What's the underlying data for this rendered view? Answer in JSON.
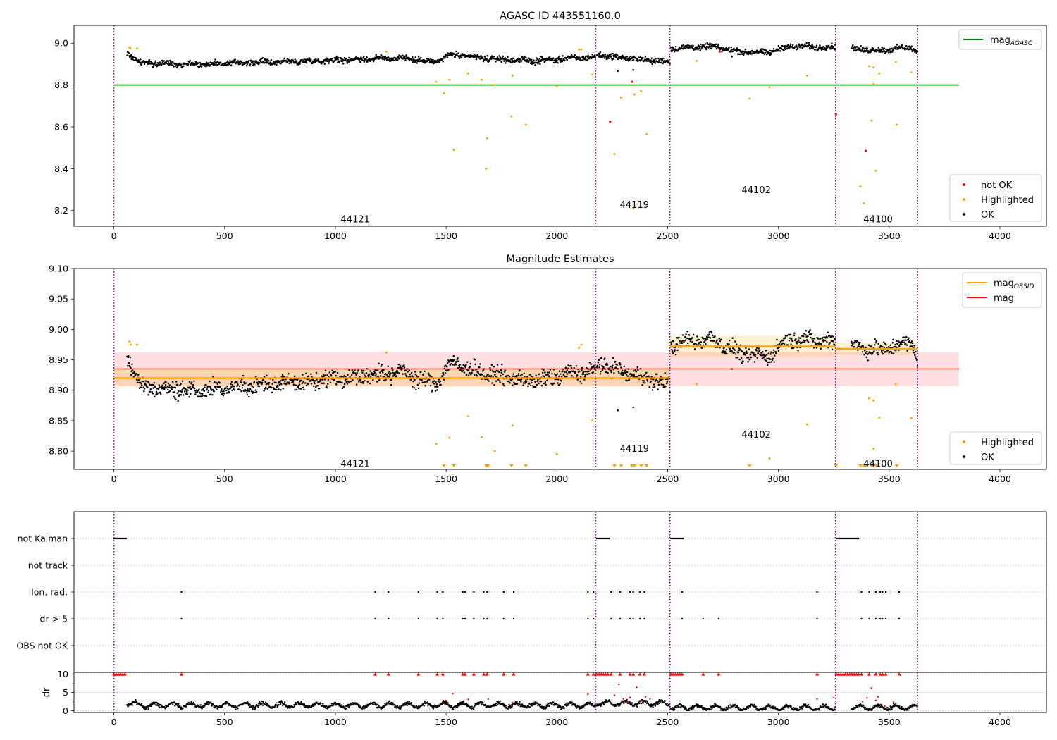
{
  "chart_data": [
    {
      "type": "scatter",
      "title": "AGASC ID 443551160.0",
      "xlim": [
        -180,
        4210
      ],
      "ylim": [
        8.125,
        9.085
      ],
      "xticks": [
        0,
        500,
        1000,
        1500,
        2000,
        2500,
        3000,
        3500,
        4000
      ],
      "yticks": [
        8.2,
        8.4,
        8.6,
        8.8,
        9.0
      ],
      "ytick_decimals": 1,
      "obsid_boundaries": [
        0,
        2175,
        2510,
        3258,
        3628
      ],
      "obsid_labels": [
        {
          "text": "44121",
          "x": 1090,
          "y": 8.16
        },
        {
          "text": "44119",
          "x": 2350,
          "y": 8.23
        },
        {
          "text": "44102",
          "x": 2900,
          "y": 8.3
        },
        {
          "text": "44100",
          "x": 3450,
          "y": 8.16
        }
      ],
      "reference_lines": [
        {
          "name": "mag_AGASC",
          "y": 8.8,
          "x_range": [
            0,
            3815
          ],
          "color": "#008000"
        }
      ],
      "segments": [
        {
          "x": [
            60,
            2175
          ],
          "knots": [
            [
              60,
              8.955
            ],
            [
              120,
              8.905
            ],
            [
              400,
              8.9
            ],
            [
              700,
              8.91
            ],
            [
              900,
              8.915
            ],
            [
              1150,
              8.925
            ],
            [
              1300,
              8.93
            ],
            [
              1450,
              8.91
            ],
            [
              1520,
              8.945
            ],
            [
              1700,
              8.925
            ],
            [
              1900,
              8.915
            ],
            [
              2100,
              8.93
            ],
            [
              2175,
              8.93
            ]
          ],
          "noise": 0.012
        },
        {
          "x": [
            2180,
            2510
          ],
          "knots": [
            [
              2180,
              8.945
            ],
            [
              2300,
              8.93
            ],
            [
              2400,
              8.92
            ],
            [
              2510,
              8.91
            ]
          ],
          "noise": 0.012
        },
        {
          "x": [
            2515,
            3258
          ],
          "knots": [
            [
              2515,
              8.975
            ],
            [
              2700,
              8.985
            ],
            [
              2820,
              8.96
            ],
            [
              2950,
              8.955
            ],
            [
              3050,
              8.985
            ],
            [
              3258,
              8.98
            ]
          ],
          "noise": 0.012
        },
        {
          "x": [
            3330,
            3628
          ],
          "knots": [
            [
              3330,
              8.975
            ],
            [
              3450,
              8.965
            ],
            [
              3600,
              8.98
            ],
            [
              3628,
              8.955
            ]
          ],
          "noise": 0.012
        }
      ],
      "highlighted": [
        [
          70,
          8.98
        ],
        [
          75,
          8.975
        ],
        [
          105,
          8.975
        ],
        [
          1230,
          8.96
        ],
        [
          1455,
          8.815
        ],
        [
          1490,
          8.76
        ],
        [
          1515,
          8.825
        ],
        [
          1535,
          8.49
        ],
        [
          1600,
          8.855
        ],
        [
          1660,
          8.825
        ],
        [
          1680,
          8.4
        ],
        [
          1685,
          8.545
        ],
        [
          1720,
          8.8
        ],
        [
          1800,
          8.845
        ],
        [
          1860,
          8.61
        ],
        [
          1795,
          8.65
        ],
        [
          2000,
          8.795
        ],
        [
          2100,
          8.97
        ],
        [
          2110,
          8.97
        ],
        [
          2160,
          8.85
        ],
        [
          2260,
          8.47
        ],
        [
          2290,
          8.74
        ],
        [
          2345,
          8.21
        ],
        [
          2350,
          8.755
        ],
        [
          2380,
          8.77
        ],
        [
          2405,
          8.565
        ],
        [
          2630,
          8.915
        ],
        [
          2870,
          8.735
        ],
        [
          2960,
          8.79
        ],
        [
          3130,
          8.845
        ],
        [
          3370,
          8.315
        ],
        [
          3385,
          8.235
        ],
        [
          3410,
          8.89
        ],
        [
          3420,
          8.63
        ],
        [
          3430,
          8.885
        ],
        [
          3440,
          8.39
        ],
        [
          3455,
          8.855
        ],
        [
          3530,
          8.91
        ],
        [
          3535,
          8.61
        ],
        [
          3600,
          8.86
        ],
        [
          3430,
          8.805
        ]
      ],
      "not_ok": [
        [
          2240,
          8.625
        ],
        [
          2340,
          8.815
        ],
        [
          2735,
          8.96
        ],
        [
          3260,
          8.66
        ],
        [
          3395,
          8.485
        ]
      ],
      "legend": [
        {
          "label": "mag",
          "sub": "AGASC",
          "kind": "line",
          "color": "#008000"
        },
        {
          "label": "not OK",
          "kind": "dot",
          "color": "#ff0000"
        },
        {
          "label": "Highlighted",
          "kind": "dot",
          "color": "#ffa500"
        },
        {
          "label": "OK",
          "kind": "dot",
          "color": "#000000"
        }
      ]
    },
    {
      "type": "scatter",
      "title": "Magnitude Estimates",
      "xlim": [
        -180,
        4210
      ],
      "ylim": [
        8.77,
        9.1
      ],
      "xticks": [
        0,
        500,
        1000,
        1500,
        2000,
        2500,
        3000,
        3500,
        4000
      ],
      "yticks": [
        8.8,
        8.85,
        8.9,
        8.95,
        9.0,
        9.05,
        9.1
      ],
      "ytick_decimals": 2,
      "obsid_boundaries": [
        0,
        2175,
        2510,
        3258,
        3628
      ],
      "obsid_labels": [
        {
          "text": "44121",
          "x": 1090,
          "y": 8.78
        },
        {
          "text": "44119",
          "x": 2350,
          "y": 8.805
        },
        {
          "text": "44102",
          "x": 2900,
          "y": 8.828
        },
        {
          "text": "44100",
          "x": 3450,
          "y": 8.78
        }
      ],
      "mag": {
        "name": "mag",
        "y": 8.935,
        "band": [
          8.907,
          8.963
        ],
        "x_range": [
          0,
          3815
        ],
        "color": "#ff0000"
      },
      "mag_obsid": [
        {
          "x": [
            0,
            2510
          ],
          "y": 8.92,
          "band": [
            8.906,
            8.934
          ]
        },
        {
          "x": [
            2510,
            3258
          ],
          "y": 8.972,
          "band": [
            8.955,
            8.989
          ]
        },
        {
          "x": [
            3258,
            3628
          ],
          "y": 8.968,
          "band": [
            8.958,
            8.978
          ]
        }
      ],
      "segments": [
        {
          "x": [
            60,
            2175
          ],
          "knots": [
            [
              60,
              8.955
            ],
            [
              120,
              8.905
            ],
            [
              400,
              8.9
            ],
            [
              700,
              8.91
            ],
            [
              900,
              8.915
            ],
            [
              1150,
              8.925
            ],
            [
              1300,
              8.93
            ],
            [
              1450,
              8.91
            ],
            [
              1520,
              8.945
            ],
            [
              1700,
              8.925
            ],
            [
              1900,
              8.915
            ],
            [
              2100,
              8.93
            ],
            [
              2175,
              8.93
            ]
          ],
          "noise": 0.012
        },
        {
          "x": [
            2180,
            2510
          ],
          "knots": [
            [
              2180,
              8.945
            ],
            [
              2300,
              8.93
            ],
            [
              2400,
              8.92
            ],
            [
              2510,
              8.91
            ]
          ],
          "noise": 0.012
        },
        {
          "x": [
            2515,
            3258
          ],
          "knots": [
            [
              2515,
              8.975
            ],
            [
              2700,
              8.985
            ],
            [
              2820,
              8.96
            ],
            [
              2950,
              8.955
            ],
            [
              3050,
              8.985
            ],
            [
              3258,
              8.98
            ]
          ],
          "noise": 0.012
        },
        {
          "x": [
            3330,
            3628
          ],
          "knots": [
            [
              3330,
              8.975
            ],
            [
              3450,
              8.965
            ],
            [
              3600,
              8.98
            ],
            [
              3628,
              8.955
            ]
          ],
          "noise": 0.012
        }
      ],
      "highlighted": [
        [
          70,
          8.98
        ],
        [
          75,
          8.975
        ],
        [
          105,
          8.975
        ],
        [
          1230,
          8.962
        ],
        [
          1455,
          8.812
        ],
        [
          1515,
          8.822
        ],
        [
          1600,
          8.857
        ],
        [
          1660,
          8.823
        ],
        [
          1720,
          8.8
        ],
        [
          1800,
          8.842
        ],
        [
          2000,
          8.795
        ],
        [
          2100,
          8.97
        ],
        [
          2110,
          8.975
        ],
        [
          2160,
          8.85
        ],
        [
          2630,
          8.91
        ],
        [
          2960,
          8.788
        ],
        [
          3130,
          8.844
        ],
        [
          3410,
          8.887
        ],
        [
          3430,
          8.883
        ],
        [
          3455,
          8.855
        ],
        [
          3530,
          8.91
        ],
        [
          3600,
          8.854
        ],
        [
          3430,
          8.804
        ]
      ],
      "off_scale": [
        1490,
        1535,
        1680,
        1685,
        1690,
        1795,
        1860,
        2260,
        2290,
        2340,
        2350,
        2380,
        2405,
        2870,
        3260,
        3370,
        3385,
        3395,
        3420,
        3440,
        3535
      ],
      "legend": [
        {
          "label": "mag",
          "sub": "OBSID",
          "kind": "line",
          "color": "#ffa500"
        },
        {
          "label": "mag",
          "kind": "line",
          "color": "#ff0000"
        },
        {
          "label": "Highlighted",
          "kind": "dot",
          "color": "#ffa500"
        },
        {
          "label": "OK",
          "kind": "dot",
          "color": "#000000"
        }
      ]
    },
    {
      "type": "scatter",
      "xlim": [
        -180,
        4210
      ],
      "categories": [
        "not Kalman",
        "not track",
        "Ion. rad.",
        "dr > 5",
        "OBS not OK"
      ],
      "obsid_boundaries": [
        0,
        2175,
        2510,
        3258,
        3628
      ],
      "flags": {
        "not Kalman": {
          "ranges": [
            [
              0,
              55
            ],
            [
              2180,
              2235
            ],
            [
              2515,
              2570
            ],
            [
              3262,
              3365
            ]
          ]
        },
        "not track": {
          "ranges": []
        },
        "Ion. rad.": {
          "points": [
            305,
            1180,
            1240,
            1375,
            1460,
            1485,
            1575,
            1585,
            1625,
            1670,
            1685,
            1760,
            1805,
            2140,
            2165,
            2245,
            2285,
            2330,
            2345,
            2375,
            2395,
            2565,
            3175,
            3375,
            3410,
            3440,
            3460,
            3470,
            3485,
            3545
          ]
        },
        "dr > 5": {
          "points": [
            305,
            1180,
            1240,
            1375,
            1460,
            1485,
            1575,
            1585,
            1625,
            1670,
            1685,
            1760,
            1805,
            2140,
            2165,
            2245,
            2285,
            2330,
            2345,
            2375,
            2395,
            2565,
            2660,
            2730,
            3175,
            3375,
            3410,
            3440,
            3460,
            3470,
            3485,
            3545
          ]
        },
        "OBS not OK": {
          "ranges": []
        }
      }
    },
    {
      "type": "scatter",
      "ylabel": "dr",
      "xlim": [
        -180,
        4210
      ],
      "ylim": [
        -0.5,
        10.5
      ],
      "xticks": [
        0,
        500,
        1000,
        1500,
        2000,
        2500,
        3000,
        3500,
        4000
      ],
      "yticks": [
        0,
        5,
        10
      ],
      "obsid_boundaries": [
        0,
        2175,
        2510,
        3258,
        3628
      ],
      "ok_segments": [
        [
          60,
          2175,
          1.5
        ],
        [
          2180,
          2510,
          2.0
        ],
        [
          2515,
          3258,
          0.8
        ],
        [
          3330,
          3628,
          0.9
        ]
      ],
      "red_capped": [
        0,
        10,
        20,
        30,
        40,
        50,
        305,
        1180,
        1240,
        1375,
        1460,
        1485,
        1575,
        1585,
        1625,
        1670,
        1685,
        1760,
        1805,
        2140,
        2165,
        2180,
        2190,
        2200,
        2210,
        2220,
        2230,
        2245,
        2285,
        2330,
        2345,
        2375,
        2395,
        2515,
        2525,
        2535,
        2545,
        2555,
        2565,
        2660,
        2730,
        3175,
        3262,
        3272,
        3282,
        3292,
        3302,
        3312,
        3322,
        3332,
        3342,
        3352,
        3362,
        3375,
        3410,
        3440,
        3460,
        3470,
        3485,
        3545
      ],
      "red_scatter": [
        [
          1500,
          2.8
        ],
        [
          1530,
          4.7
        ],
        [
          1600,
          3.1
        ],
        [
          1690,
          3.2
        ],
        [
          1800,
          2.2
        ],
        [
          2140,
          4.5
        ],
        [
          2260,
          4.2
        ],
        [
          2280,
          7.2
        ],
        [
          2300,
          3.2
        ],
        [
          2320,
          2.4
        ],
        [
          2330,
          3.6
        ],
        [
          2360,
          6.4
        ],
        [
          2380,
          2.7
        ],
        [
          2400,
          3.8
        ],
        [
          2420,
          3.2
        ],
        [
          3175,
          3.2
        ],
        [
          3250,
          3.6
        ],
        [
          3380,
          2.5
        ],
        [
          3400,
          3.5
        ],
        [
          3420,
          6.2
        ],
        [
          3440,
          2.8
        ],
        [
          3450,
          3.8
        ],
        [
          3480,
          1.2
        ],
        [
          3520,
          2.3
        ]
      ]
    }
  ]
}
